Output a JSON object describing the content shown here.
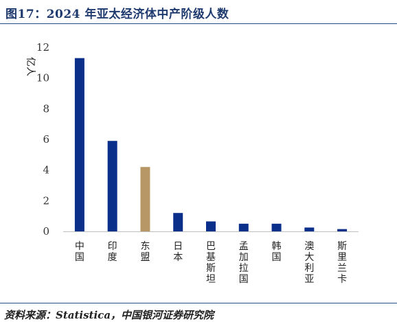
{
  "figure": {
    "title": "图17：2024 年亚太经济体中产阶级人数",
    "source": "资料来源：Statistica，中国银河证券研究院"
  },
  "colors": {
    "primary": "#0a2f8a",
    "highlight": "#b89766",
    "axis": "#bfbfbf",
    "rule": "#2a4a86"
  },
  "chart_data": {
    "type": "bar",
    "ylabel": "亿人",
    "ylim": [
      0,
      12
    ],
    "yticks": [
      0,
      2,
      4,
      6,
      8,
      10,
      12
    ],
    "grid": false,
    "categories": [
      "中国",
      "印度",
      "东盟",
      "日本",
      "巴基斯坦",
      "孟加拉国",
      "韩国",
      "澳大利亚",
      "斯里兰卡"
    ],
    "values": [
      11.3,
      5.9,
      4.2,
      1.2,
      0.65,
      0.5,
      0.5,
      0.25,
      0.15
    ],
    "highlight_category": "东盟"
  }
}
